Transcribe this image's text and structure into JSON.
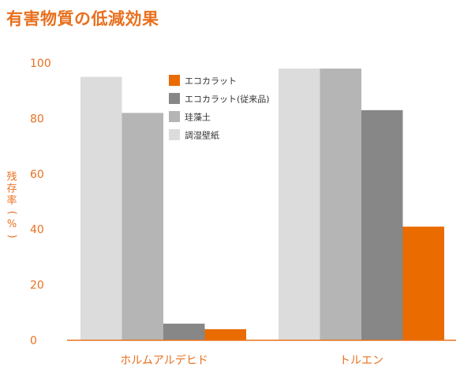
{
  "title": "有害物質の低減効果",
  "chart_data": {
    "type": "bar",
    "title": "有害物質の低減効果",
    "ylabel": "残存率(%)",
    "xlabel": "",
    "ylim": [
      0,
      100
    ],
    "yticks": [
      0,
      20,
      40,
      60,
      80,
      100
    ],
    "categories": [
      "ホルムアルデヒド",
      "トルエン"
    ],
    "series": [
      {
        "name": "調湿壁紙",
        "color": "#dcdcdc",
        "values": [
          95,
          98
        ]
      },
      {
        "name": "珪藻土",
        "color": "#b5b5b5",
        "values": [
          82,
          98
        ]
      },
      {
        "name": "エコカラット(従来品)",
        "color": "#878787",
        "values": [
          6,
          83
        ]
      },
      {
        "name": "エコカラット",
        "color": "#ea6b00",
        "values": [
          4,
          41
        ]
      }
    ],
    "legend_order": [
      "エコカラット",
      "エコカラット(従来品)",
      "珪藻土",
      "調湿壁紙"
    ],
    "legend_position": "top-center",
    "grid": false,
    "axis_color": "#e9701f"
  }
}
